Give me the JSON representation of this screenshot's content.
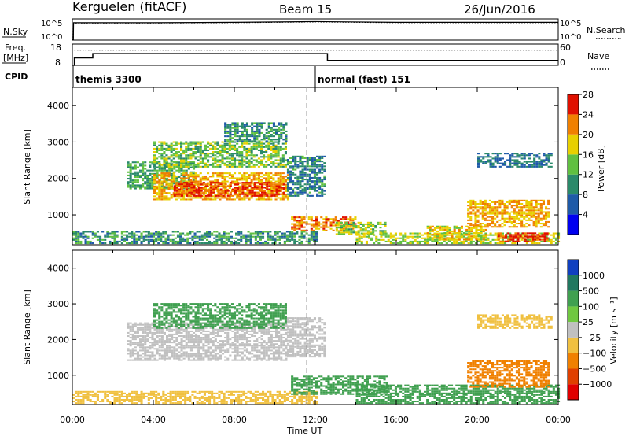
{
  "header": {
    "station": "Kerguelen (fitACF)",
    "beam": "Beam 15",
    "date": "26/Jun/2016"
  },
  "nsky_panel": {
    "left_label": "N.Sky",
    "right_label": "N.Search",
    "left_ticks": [
      "10^5",
      "10^0"
    ],
    "right_ticks": [
      "10^5",
      "10^0"
    ]
  },
  "freq_panel": {
    "left_label_line1": "Freq.",
    "left_label_line2": "[MHz]",
    "right_label": "Nave",
    "left_ticks": [
      "18",
      "8"
    ],
    "right_ticks": [
      "60",
      "0"
    ]
  },
  "cpid": {
    "label": "CPID",
    "modes": [
      {
        "name": "themis 3300",
        "start_hour": 0
      },
      {
        "name": "normal (fast) 151",
        "start_hour": 12
      }
    ]
  },
  "power_panel": {
    "ylabel": "Slant Range [km]",
    "colorbar_label": "Power [dB]",
    "colorbar_ticks": [
      "4",
      "8",
      "12",
      "16",
      "20",
      "24",
      "28"
    ],
    "colorbar_colors": [
      "#0000f0",
      "#1e5aa8",
      "#2a8a6a",
      "#60c040",
      "#e8d000",
      "#f08000",
      "#e01000"
    ]
  },
  "velocity_panel": {
    "ylabel": "Slant Range [km]",
    "colorbar_label": "Velocity [m s⁻¹]",
    "colorbar_ticks": [
      "1000",
      "500",
      "100",
      "25",
      "−25",
      "−100",
      "−500",
      "−1000"
    ],
    "colorbar_colors": [
      "#1040c0",
      "#207860",
      "#40a050",
      "#70c840",
      "#c0c0c0",
      "#f0c040",
      "#f08000",
      "#e04000",
      "#e00000"
    ]
  },
  "x_axis": {
    "label": "Time UT",
    "tick_labels": [
      "00:00",
      "04:00",
      "08:00",
      "12:00",
      "16:00",
      "20:00",
      "00:00"
    ]
  },
  "chart_data": [
    {
      "type": "line",
      "title": "N.Sky / N.Search",
      "x_hours": [
        0,
        0.05,
        0.06,
        4,
        8,
        12,
        16,
        20,
        24
      ],
      "series": [
        {
          "name": "N.Sky",
          "values_log10": [
            0,
            0,
            4.4,
            4.4,
            4.5,
            4.7,
            4.5,
            4.5,
            4.5
          ]
        },
        {
          "name": "N.Search",
          "values_log10": [
            0,
            0,
            4.3,
            4.3,
            4.4,
            4.6,
            4.4,
            4.4,
            4.4
          ]
        }
      ],
      "ylim_log10": [
        0,
        5
      ]
    },
    {
      "type": "line",
      "title": "Freq. / Nave",
      "x_hours": [
        0,
        0.1,
        1.0,
        1.01,
        12.2,
        12.6,
        24
      ],
      "series": [
        {
          "name": "Freq [MHz]",
          "values": [
            8,
            11.5,
            11.5,
            13.5,
            13.5,
            10.3,
            10.3
          ]
        },
        {
          "name": "Nave",
          "values": [
            null,
            43,
            43,
            43,
            43,
            43,
            43
          ]
        }
      ],
      "ylim": [
        8,
        18
      ],
      "ylim_right": [
        0,
        60
      ]
    },
    {
      "type": "heatmap",
      "title": "Power [dB]",
      "x_range_hours": [
        0,
        24
      ],
      "y_range_km": [
        180,
        4500
      ],
      "regions": [
        {
          "t0": 0.0,
          "t1": 12.0,
          "r0": 200,
          "r1": 550,
          "level": 10
        },
        {
          "t0": 2.7,
          "t1": 6.0,
          "r0": 1700,
          "r1": 2450,
          "level": 12
        },
        {
          "t0": 4.0,
          "t1": 10.6,
          "r0": 1400,
          "r1": 2150,
          "level": 20
        },
        {
          "t0": 5.0,
          "t1": 10.4,
          "r0": 1500,
          "r1": 1900,
          "level": 25
        },
        {
          "t0": 4.0,
          "t1": 10.5,
          "r0": 2300,
          "r1": 3000,
          "level": 14
        },
        {
          "t0": 7.5,
          "t1": 10.5,
          "r0": 3000,
          "r1": 3500,
          "level": 10
        },
        {
          "t0": 10.6,
          "t1": 12.4,
          "r0": 1500,
          "r1": 2600,
          "level": 9
        },
        {
          "t0": 10.8,
          "t1": 14.0,
          "r0": 550,
          "r1": 950,
          "level": 22
        },
        {
          "t0": 13.0,
          "t1": 15.5,
          "r0": 450,
          "r1": 800,
          "level": 15
        },
        {
          "t0": 14.0,
          "t1": 24.0,
          "r0": 200,
          "r1": 500,
          "level": 16
        },
        {
          "t0": 17.5,
          "t1": 20.5,
          "r0": 300,
          "r1": 700,
          "level": 18
        },
        {
          "t0": 19.5,
          "t1": 23.5,
          "r0": 650,
          "r1": 1400,
          "level": 20
        },
        {
          "t0": 21.0,
          "t1": 23.5,
          "r0": 250,
          "r1": 500,
          "level": 26
        },
        {
          "t0": 20.0,
          "t1": 23.7,
          "r0": 2300,
          "r1": 2700,
          "level": 8
        }
      ]
    },
    {
      "type": "heatmap",
      "title": "Velocity [m s⁻¹]",
      "x_range_hours": [
        0,
        24
      ],
      "y_range_km": [
        180,
        4500
      ],
      "regions": [
        {
          "t0": 0.0,
          "t1": 12.0,
          "r0": 200,
          "r1": 550,
          "level": -50
        },
        {
          "t0": 2.7,
          "t1": 10.6,
          "r0": 1400,
          "r1": 2450,
          "level": 0
        },
        {
          "t0": 4.0,
          "t1": 10.5,
          "r0": 2300,
          "r1": 3000,
          "level": 150
        },
        {
          "t0": 10.6,
          "t1": 12.4,
          "r0": 1500,
          "r1": 2600,
          "level": 0
        },
        {
          "t0": 10.8,
          "t1": 15.5,
          "r0": 450,
          "r1": 950,
          "level": 120
        },
        {
          "t0": 14.0,
          "t1": 24.0,
          "r0": 200,
          "r1": 700,
          "level": 120
        },
        {
          "t0": 19.5,
          "t1": 23.5,
          "r0": 650,
          "r1": 1400,
          "level": -150
        },
        {
          "t0": 20.0,
          "t1": 23.7,
          "r0": 2300,
          "r1": 2700,
          "level": -50
        }
      ]
    }
  ]
}
